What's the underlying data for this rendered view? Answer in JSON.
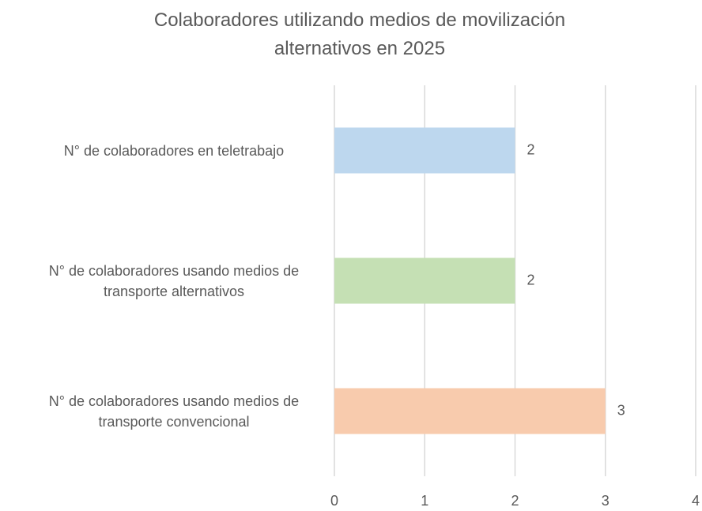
{
  "chart_data": {
    "type": "bar",
    "orientation": "horizontal",
    "title": "Colaboradores utilizando medios de movilización alternativos en 2025",
    "categories": [
      "N° de colaboradores en teletrabajo",
      "N° de colaboradores usando medios de transporte alternativos",
      "N° de colaboradores usando medios de transporte convencional"
    ],
    "values": [
      2,
      2,
      3
    ],
    "colors": [
      "#bdd7ee",
      "#c5e0b4",
      "#f8cbad"
    ],
    "xlim": [
      0,
      4
    ],
    "xticks": [
      0,
      1,
      2,
      3,
      4
    ],
    "grid": true
  }
}
